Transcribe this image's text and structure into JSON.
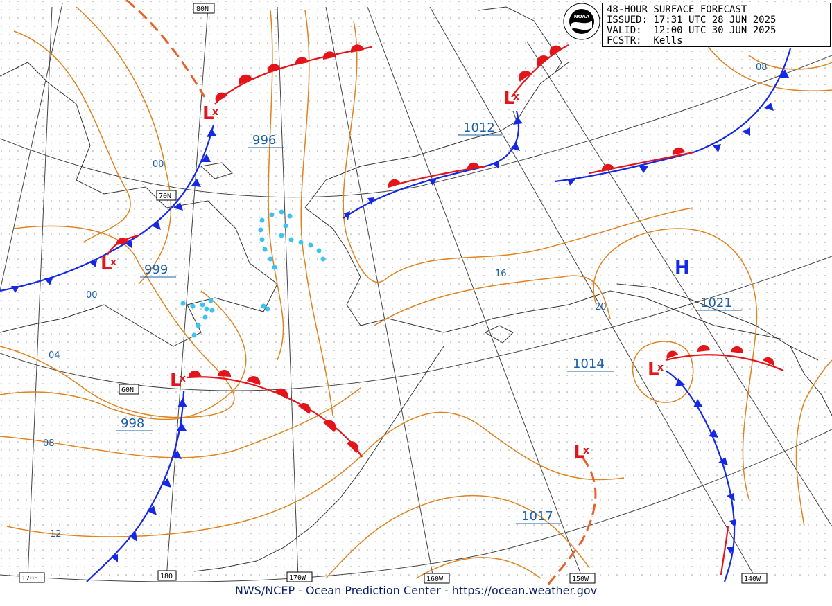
{
  "header": {
    "line1": "48-HOUR SURFACE FORECAST",
    "line2": "ISSUED: 17:31 UTC 28 JUN 2025",
    "line3": "VALID:  12:00 UTC 30 JUN 2025",
    "line4": "FCSTR:  Kells"
  },
  "footer": "NWS/NCEP - Ocean Prediction Center - https://ocean.weather.gov",
  "logo_text": "NOAA",
  "grid_labels": {
    "lat80": "80N",
    "lat70": "70N",
    "lat60": "60N",
    "lon170e": "170E",
    "lon180": "180",
    "lon170w": "170W",
    "lon160w": "160W",
    "lon150w": "150W",
    "lon140w": "140W"
  },
  "isobar_labels": {
    "i00a": "00",
    "i00b": "00",
    "i04": "04",
    "i08a": "08",
    "i12": "12",
    "i16": "16",
    "i20": "20",
    "i08b": "08"
  },
  "pressure_centers": {
    "c996": "996",
    "c999": "999",
    "c998": "998",
    "c1012": "1012",
    "c1014": "1014",
    "c1017": "1017",
    "c1021": "1021"
  },
  "symbols": {
    "low": "L",
    "high": "H",
    "cross": "x"
  },
  "colors": {
    "isobar": "#e0821e",
    "warm_front": "#e4141b",
    "cold_front": "#1428e6",
    "trough": "#e8602a",
    "precip": "#3cc3f0",
    "label": "#1a5fa8"
  }
}
